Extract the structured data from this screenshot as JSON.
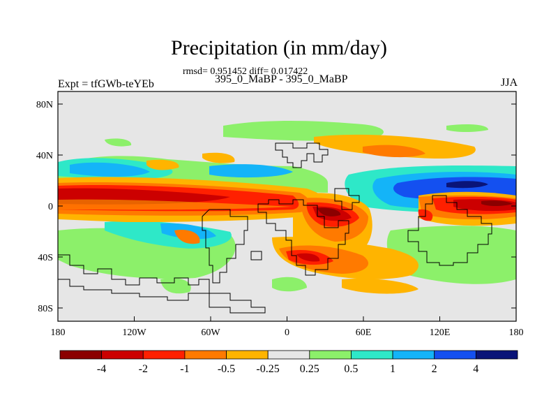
{
  "header": {
    "title": "Precipitation (in mm/day)",
    "stats": "rmsd= 0.951452 diff= 0.017422",
    "subtitle": "395_0_MaBP - 395_0_MaBP",
    "left_label": "Expt = tfGWb-teYEb",
    "right_label": "JJA"
  },
  "map": {
    "lat_ticks": [
      "80N",
      "40N",
      "0",
      "40S",
      "80S"
    ],
    "lon_ticks": [
      "180",
      "120W",
      "60W",
      "0",
      "60E",
      "120E",
      "180"
    ]
  },
  "colorbar": {
    "colors": [
      "#8b0000",
      "#cc0000",
      "#ff2000",
      "#ff7a00",
      "#ffb400",
      "#e6e6e6",
      "#8cf06a",
      "#2ee8c8",
      "#14b4f8",
      "#1450f0",
      "#0a1478"
    ],
    "labels": [
      "-4",
      "-2",
      "-1",
      "-0.5",
      "-0.25",
      "0.25",
      "0.5",
      "1",
      "2",
      "4"
    ]
  }
}
